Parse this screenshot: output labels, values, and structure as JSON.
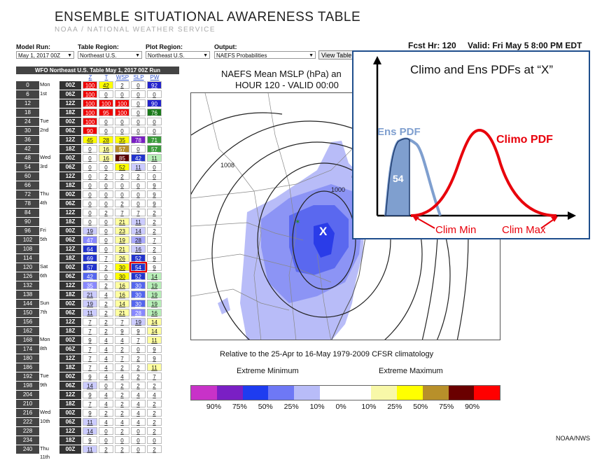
{
  "header": {
    "title": "ENSEMBLE SITUATIONAL AWARENESS TABLE",
    "subtitle": "NOAA / NATIONAL WEATHER SERVICE"
  },
  "controls": {
    "model_run": {
      "label": "Model Run:",
      "value": "May 1, 2017 00Z"
    },
    "table_region": {
      "label": "Table Region:",
      "value": "Northeast U.S."
    },
    "plot_region": {
      "label": "Plot Region:",
      "value": "Northeast U.S."
    },
    "output": {
      "label": "Output:",
      "value": "NAEFS Probabilities"
    },
    "view_button": "View Table"
  },
  "forecast": {
    "fcst_hr": "Fcst Hr: 120",
    "valid": "Valid: Fri May 5 8:00 PM EDT"
  },
  "table": {
    "title": "WFO Northeast U.S. Table   May 1, 2017 00Z Run",
    "columns": [
      "Z",
      "T",
      "WSP",
      "SLP",
      "PW"
    ],
    "rows": [
      {
        "hr": "0",
        "day": "Mon",
        "z": "00Z",
        "v": [
          "100",
          "42",
          "2",
          "0",
          "92"
        ],
        "c": [
          "#e00",
          "#ff0",
          "#fff",
          "#fff",
          "#22c"
        ]
      },
      {
        "hr": "6",
        "day": "1st",
        "z": "06Z",
        "v": [
          "100",
          "0",
          "0",
          "0",
          "0"
        ],
        "c": [
          "#e00",
          "#fff",
          "#fff",
          "#fff",
          "#fff"
        ]
      },
      {
        "hr": "12",
        "day": "",
        "z": "12Z",
        "v": [
          "100",
          "100",
          "100",
          "0",
          "90"
        ],
        "c": [
          "#e00",
          "#e00",
          "#e00",
          "#fff",
          "#22c"
        ]
      },
      {
        "hr": "18",
        "day": "",
        "z": "18Z",
        "v": [
          "100",
          "95",
          "100",
          "0",
          "76"
        ],
        "c": [
          "#e00",
          "#e00",
          "#e00",
          "#fff",
          "#1a7a1a"
        ]
      },
      {
        "hr": "24",
        "day": "Tue",
        "z": "00Z",
        "v": [
          "100",
          "0",
          "0",
          "0",
          "0"
        ],
        "c": [
          "#e00",
          "#fff",
          "#fff",
          "#fff",
          "#fff"
        ]
      },
      {
        "hr": "30",
        "day": "2nd",
        "z": "06Z",
        "v": [
          "90",
          "0",
          "0",
          "0",
          "0"
        ],
        "c": [
          "#e00",
          "#fff",
          "#fff",
          "#fff",
          "#fff"
        ]
      },
      {
        "hr": "36",
        "day": "",
        "z": "12Z",
        "v": [
          "45",
          "28",
          "35",
          "78",
          "71"
        ],
        "c": [
          "#ff0",
          "#ff0",
          "#ff0",
          "#7a1fc4",
          "#3a9a3a"
        ]
      },
      {
        "hr": "42",
        "day": "",
        "z": "18Z",
        "v": [
          "0",
          "16",
          "57",
          "0",
          "57"
        ],
        "c": [
          "#fff",
          "#ffffa0",
          "#b8902a",
          "#fff",
          "#3a9a3a"
        ]
      },
      {
        "hr": "48",
        "day": "Wed",
        "z": "00Z",
        "v": [
          "0",
          "16",
          "85",
          "42",
          "11"
        ],
        "c": [
          "#fff",
          "#ffffa0",
          "#5a0000",
          "#2233cc",
          "#b8f0b8"
        ]
      },
      {
        "hr": "54",
        "day": "3rd",
        "z": "06Z",
        "v": [
          "0",
          "0",
          "52",
          "11",
          "0"
        ],
        "c": [
          "#fff",
          "#fff",
          "#ff0",
          "#ccccff",
          "#fff"
        ]
      },
      {
        "hr": "60",
        "day": "",
        "z": "12Z",
        "v": [
          "0",
          "2",
          "2",
          "2",
          "0"
        ],
        "c": [
          "#fff",
          "#fff",
          "#fff",
          "#fff",
          "#fff"
        ]
      },
      {
        "hr": "66",
        "day": "",
        "z": "18Z",
        "v": [
          "0",
          "0",
          "0",
          "0",
          "9"
        ],
        "c": [
          "#fff",
          "#fff",
          "#fff",
          "#fff",
          "#fff"
        ]
      },
      {
        "hr": "72",
        "day": "Thu",
        "z": "00Z",
        "v": [
          "0",
          "0",
          "0",
          "0",
          "9"
        ],
        "c": [
          "#fff",
          "#fff",
          "#fff",
          "#fff",
          "#fff"
        ]
      },
      {
        "hr": "78",
        "day": "4th",
        "z": "06Z",
        "v": [
          "0",
          "0",
          "2",
          "0",
          "9"
        ],
        "c": [
          "#fff",
          "#fff",
          "#fff",
          "#fff",
          "#fff"
        ]
      },
      {
        "hr": "84",
        "day": "",
        "z": "12Z",
        "v": [
          "0",
          "2",
          "7",
          "7",
          "2"
        ],
        "c": [
          "#fff",
          "#fff",
          "#fff",
          "#fff",
          "#fff"
        ]
      },
      {
        "hr": "90",
        "day": "",
        "z": "18Z",
        "v": [
          "0",
          "0",
          "21",
          "11",
          "2"
        ],
        "c": [
          "#fff",
          "#fff",
          "#ffffa0",
          "#ccccff",
          "#fff"
        ]
      },
      {
        "hr": "96",
        "day": "Fri",
        "z": "00Z",
        "v": [
          "19",
          "0",
          "23",
          "14",
          "2"
        ],
        "c": [
          "#ccccff",
          "#fff",
          "#ffffa0",
          "#ccccff",
          "#fff"
        ]
      },
      {
        "hr": "102",
        "day": "5th",
        "z": "06Z",
        "v": [
          "47",
          "0",
          "19",
          "28",
          "7"
        ],
        "c": [
          "#8888ff",
          "#fff",
          "#ffffa0",
          "#aaaaff",
          "#fff"
        ]
      },
      {
        "hr": "108",
        "day": "",
        "z": "12Z",
        "v": [
          "64",
          "0",
          "21",
          "16",
          "2"
        ],
        "c": [
          "#2233cc",
          "#fff",
          "#ffffa0",
          "#ccccff",
          "#fff"
        ]
      },
      {
        "hr": "114",
        "day": "",
        "z": "18Z",
        "v": [
          "69",
          "7",
          "26",
          "52",
          "9"
        ],
        "c": [
          "#2233cc",
          "#fff",
          "#ffffa0",
          "#2233cc",
          "#fff"
        ]
      },
      {
        "hr": "120",
        "day": "Sat",
        "z": "00Z",
        "v": [
          "57",
          "2",
          "30",
          "54",
          "9"
        ],
        "c": [
          "#2233cc",
          "#fff",
          "#ff0",
          "#2233cc",
          "#fff"
        ]
      },
      {
        "hr": "126",
        "day": "6th",
        "z": "06Z",
        "v": [
          "42",
          "0",
          "30",
          "52",
          "14"
        ],
        "c": [
          "#5566ee",
          "#fff",
          "#ff0",
          "#2233cc",
          "#b8f0b8"
        ]
      },
      {
        "hr": "132",
        "day": "",
        "z": "12Z",
        "v": [
          "35",
          "2",
          "16",
          "30",
          "19"
        ],
        "c": [
          "#8888ff",
          "#fff",
          "#ffffa0",
          "#5566ee",
          "#b8f0b8"
        ]
      },
      {
        "hr": "138",
        "day": "",
        "z": "18Z",
        "v": [
          "21",
          "4",
          "16",
          "30",
          "19"
        ],
        "c": [
          "#ccccff",
          "#fff",
          "#ffffa0",
          "#5566ee",
          "#b8f0b8"
        ]
      },
      {
        "hr": "144",
        "day": "Sun",
        "z": "00Z",
        "v": [
          "19",
          "2",
          "14",
          "30",
          "19"
        ],
        "c": [
          "#ccccff",
          "#fff",
          "#ffffa0",
          "#5566ee",
          "#b8f0b8"
        ]
      },
      {
        "hr": "150",
        "day": "7th",
        "z": "06Z",
        "v": [
          "11",
          "2",
          "21",
          "28",
          "16"
        ],
        "c": [
          "#ccccff",
          "#fff",
          "#ffffa0",
          "#8888ff",
          "#b8f0b8"
        ]
      },
      {
        "hr": "156",
        "day": "",
        "z": "12Z",
        "v": [
          "7",
          "2",
          "7",
          "19",
          "14"
        ],
        "c": [
          "#fff",
          "#fff",
          "#fff",
          "#ccccff",
          "#ffffa0"
        ]
      },
      {
        "hr": "162",
        "day": "",
        "z": "18Z",
        "v": [
          "7",
          "2",
          "9",
          "9",
          "14"
        ],
        "c": [
          "#fff",
          "#fff",
          "#fff",
          "#fff",
          "#ffffa0"
        ]
      },
      {
        "hr": "168",
        "day": "Mon",
        "z": "00Z",
        "v": [
          "9",
          "4",
          "4",
          "7",
          "11"
        ],
        "c": [
          "#fff",
          "#fff",
          "#fff",
          "#fff",
          "#ffffa0"
        ]
      },
      {
        "hr": "174",
        "day": "8th",
        "z": "06Z",
        "v": [
          "7",
          "4",
          "2",
          "0",
          "9"
        ],
        "c": [
          "#fff",
          "#fff",
          "#fff",
          "#fff",
          "#fff"
        ]
      },
      {
        "hr": "180",
        "day": "",
        "z": "12Z",
        "v": [
          "7",
          "4",
          "7",
          "2",
          "9"
        ],
        "c": [
          "#fff",
          "#fff",
          "#fff",
          "#fff",
          "#fff"
        ]
      },
      {
        "hr": "186",
        "day": "",
        "z": "18Z",
        "v": [
          "7",
          "4",
          "2",
          "2",
          "11"
        ],
        "c": [
          "#fff",
          "#fff",
          "#fff",
          "#fff",
          "#ffffa0"
        ]
      },
      {
        "hr": "192",
        "day": "Tue",
        "z": "00Z",
        "v": [
          "9",
          "4",
          "4",
          "2",
          "7"
        ],
        "c": [
          "#fff",
          "#fff",
          "#fff",
          "#fff",
          "#fff"
        ]
      },
      {
        "hr": "198",
        "day": "9th",
        "z": "06Z",
        "v": [
          "14",
          "0",
          "2",
          "2",
          "2"
        ],
        "c": [
          "#ccccff",
          "#fff",
          "#fff",
          "#fff",
          "#fff"
        ]
      },
      {
        "hr": "204",
        "day": "",
        "z": "12Z",
        "v": [
          "9",
          "4",
          "2",
          "4",
          "4"
        ],
        "c": [
          "#fff",
          "#fff",
          "#fff",
          "#fff",
          "#fff"
        ]
      },
      {
        "hr": "210",
        "day": "",
        "z": "18Z",
        "v": [
          "7",
          "4",
          "2",
          "4",
          "2"
        ],
        "c": [
          "#fff",
          "#fff",
          "#fff",
          "#fff",
          "#fff"
        ]
      },
      {
        "hr": "216",
        "day": "Wed",
        "z": "00Z",
        "v": [
          "9",
          "2",
          "2",
          "4",
          "2"
        ],
        "c": [
          "#fff",
          "#fff",
          "#fff",
          "#fff",
          "#fff"
        ]
      },
      {
        "hr": "222",
        "day": "10th",
        "z": "06Z",
        "v": [
          "11",
          "4",
          "4",
          "4",
          "2"
        ],
        "c": [
          "#ccccff",
          "#fff",
          "#fff",
          "#fff",
          "#fff"
        ]
      },
      {
        "hr": "228",
        "day": "",
        "z": "12Z",
        "v": [
          "14",
          "0",
          "2",
          "0",
          "2"
        ],
        "c": [
          "#ccccff",
          "#fff",
          "#fff",
          "#fff",
          "#fff"
        ]
      },
      {
        "hr": "234",
        "day": "",
        "z": "18Z",
        "v": [
          "9",
          "0",
          "0",
          "0",
          "0"
        ],
        "c": [
          "#fff",
          "#fff",
          "#fff",
          "#fff",
          "#fff"
        ]
      },
      {
        "hr": "240",
        "day": "Thu",
        "z": "00Z",
        "v": [
          "11",
          "2",
          "2",
          "0",
          "2"
        ],
        "c": [
          "#ccccff",
          "#fff",
          "#fff",
          "#fff",
          "#fff"
        ]
      }
    ],
    "extra_day": "11th",
    "highlight": {
      "row": 20,
      "col": 3
    }
  },
  "map": {
    "title_line1": "NAEFS Mean MSLP (hPa) an",
    "title_line2": "HOUR 120 - VALID 00:00",
    "contours": [
      "1008",
      "1000"
    ],
    "x_marker": "X"
  },
  "inset": {
    "title": "Climo and Ens PDFs at “X”",
    "ens_label": "Ens PDF",
    "climo_label": "Climo PDF",
    "ens_value": "54",
    "clim_min": "Clim Min",
    "clim_max": "Clim Max",
    "ens_color": "#7f9fcf",
    "climo_color": "#e8000b"
  },
  "climatology_text": "Relative to the 25-Apr to 16-May 1979-2009 CFSR climatology",
  "legend": {
    "extreme_min": "Extreme Minimum",
    "extreme_max": "Extreme Maximum",
    "colors": [
      "#c832c8",
      "#7a1fc4",
      "#1e3cf0",
      "#6e78f5",
      "#b8bcf8",
      "#ffffff",
      "#ffffff",
      "#f8f8a8",
      "#ffff00",
      "#b8902a",
      "#6a0000",
      "#ff0000"
    ],
    "labels": [
      "90%",
      "75%",
      "50%",
      "25%",
      "10%",
      "0%",
      "10%",
      "25%",
      "50%",
      "75%",
      "90%"
    ]
  },
  "credit": "NOAA/NWS"
}
